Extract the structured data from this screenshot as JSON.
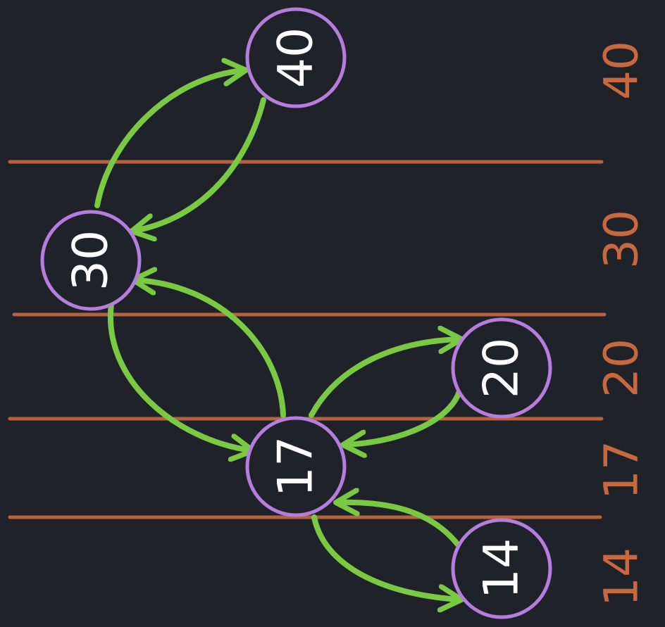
{
  "colors": {
    "background": "#1f2329",
    "node_border": "#b57edc",
    "edge": "#7ac943",
    "divider": "#b5623e",
    "label": "#c8683f"
  },
  "nodes": [
    {
      "id": "40",
      "label": "40"
    },
    {
      "id": "30",
      "label": "30"
    },
    {
      "id": "20",
      "label": "20"
    },
    {
      "id": "17",
      "label": "17"
    },
    {
      "id": "14",
      "label": "14"
    }
  ],
  "edges": [
    {
      "from": "30",
      "to": "40"
    },
    {
      "from": "40",
      "to": "30"
    },
    {
      "from": "17",
      "to": "30"
    },
    {
      "from": "30",
      "to": "17"
    },
    {
      "from": "17",
      "to": "20"
    },
    {
      "from": "20",
      "to": "17"
    },
    {
      "from": "14",
      "to": "17"
    },
    {
      "from": "17",
      "to": "14"
    }
  ],
  "axis_labels": [
    "40",
    "30",
    "20",
    "17",
    "14"
  ]
}
